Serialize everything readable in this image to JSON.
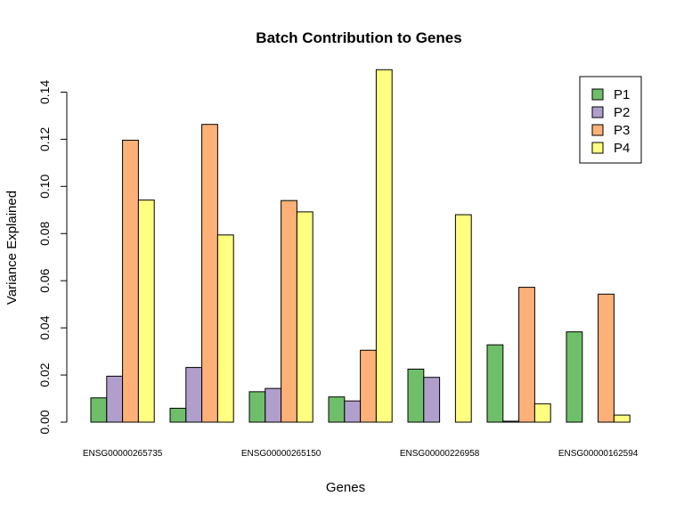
{
  "chart_data": {
    "type": "bar",
    "title": "Batch Contribution to Genes",
    "xlabel": "Genes",
    "ylabel": "Variance Explained",
    "ylim": [
      0,
      0.15
    ],
    "yticks": [
      "0.00",
      "0.02",
      "0.04",
      "0.06",
      "0.08",
      "0.10",
      "0.12",
      "0.14"
    ],
    "categories": [
      "ENSG00000265735",
      "",
      "ENSG00000265150",
      "",
      "ENSG00000226958",
      "",
      "ENSG00000162594"
    ],
    "series": [
      {
        "name": "P1",
        "color": "#6fbf6a",
        "values": [
          0.0103,
          0.0059,
          0.0129,
          0.0107,
          0.0225,
          0.0328,
          0.0383
        ]
      },
      {
        "name": "P2",
        "color": "#b09fcc",
        "values": [
          0.0195,
          0.0232,
          0.0143,
          0.009,
          0.019,
          0.0004,
          0.0
        ]
      },
      {
        "name": "P3",
        "color": "#fdb179",
        "values": [
          0.1196,
          0.1263,
          0.094,
          0.0305,
          0.0,
          0.0572,
          0.0543
        ]
      },
      {
        "name": "P4",
        "color": "#ffff80",
        "values": [
          0.0942,
          0.0794,
          0.0892,
          0.1495,
          0.088,
          0.0078,
          0.003
        ]
      }
    ],
    "grid": false,
    "legend_position": "top-right"
  }
}
